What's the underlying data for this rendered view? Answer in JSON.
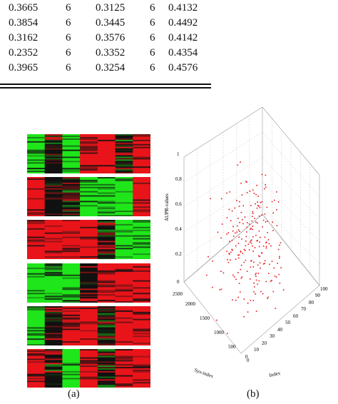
{
  "table": {
    "rows": [
      [
        "0.3665",
        "6",
        "0.3125",
        "6",
        "0.4132"
      ],
      [
        "0.3854",
        "6",
        "0.3445",
        "6",
        "0.4492"
      ],
      [
        "0.3162",
        "6",
        "0.3576",
        "6",
        "0.4142"
      ],
      [
        "0.2352",
        "6",
        "0.3352",
        "6",
        "0.4354"
      ],
      [
        "0.3965",
        "6",
        "0.3254",
        "6",
        "0.4576"
      ]
    ]
  },
  "figure": {
    "caption_a": "(a)",
    "caption_b": "(b)",
    "heatmap_colors": {
      "red": "#e8141a",
      "green": "#1fe61a",
      "black": "#111111"
    },
    "panel_count": 6,
    "scatter": {
      "point_color": "#e8141a",
      "z_ticks": [
        "0",
        "0.2",
        "0.4",
        "0.6",
        "0.8",
        "1"
      ],
      "y_ticks": [
        "0",
        "500",
        "1000",
        "1500",
        "2000",
        "2500"
      ],
      "x_ticks": [
        "0",
        "10",
        "20",
        "30",
        "40",
        "50",
        "60",
        "70",
        "80",
        "90",
        "100"
      ],
      "z_label": "AUPR-values",
      "y_label": "Sys-index",
      "x_label": "Index"
    }
  }
}
